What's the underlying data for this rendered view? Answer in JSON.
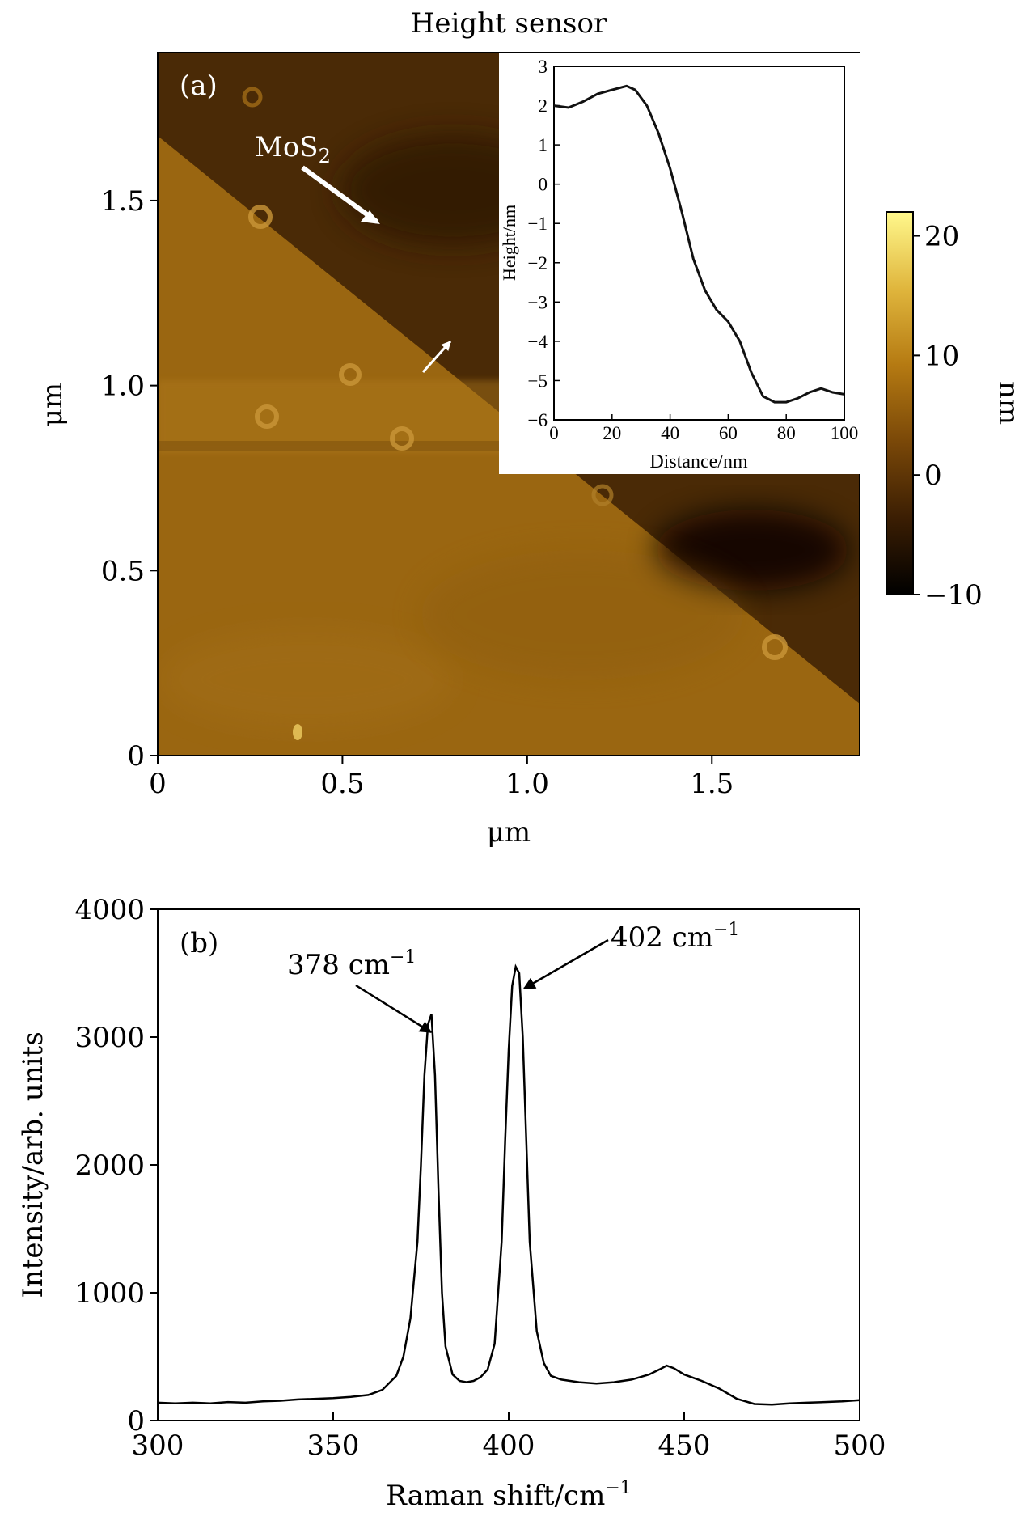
{
  "chart_data": [
    {
      "panel": "(a)",
      "type": "heatmap",
      "title": "Height sensor",
      "xlabel": "μm",
      "ylabel": "μm",
      "xlim": [
        0,
        1.9
      ],
      "ylim": [
        0,
        1.9
      ],
      "x_ticks": [
        "0",
        "0.5",
        "1.0",
        "1.5"
      ],
      "y_ticks": [
        "0",
        "0.5",
        "1.0",
        "1.5"
      ],
      "annotation": {
        "base": "MoS",
        "sub": "2"
      },
      "colorbar": {
        "label": "nm",
        "range": [
          -10,
          22
        ],
        "ticks": [
          "20",
          "10",
          "0",
          "−10"
        ],
        "colors": [
          "#000000",
          "#3b1e03",
          "#7a4808",
          "#b57a12",
          "#e0b63d",
          "#fff88c"
        ]
      },
      "inset": {
        "type": "line",
        "xlabel": "Distance/nm",
        "ylabel": "Height/nm",
        "xlim": [
          0,
          100
        ],
        "ylim": [
          -6,
          3
        ],
        "x_ticks": [
          "0",
          "20",
          "40",
          "60",
          "80",
          "100"
        ],
        "y_ticks": [
          "3",
          "2",
          "1",
          "0",
          "−1",
          "−2",
          "−3",
          "−4",
          "−5",
          "−6"
        ],
        "x": [
          0,
          5,
          10,
          15,
          20,
          25,
          28,
          32,
          36,
          40,
          44,
          48,
          52,
          56,
          60,
          64,
          68,
          72,
          76,
          80,
          84,
          88,
          92,
          96,
          100
        ],
        "y": [
          2.0,
          1.95,
          2.1,
          2.3,
          2.4,
          2.5,
          2.4,
          2.0,
          1.3,
          0.4,
          -0.7,
          -1.9,
          -2.7,
          -3.2,
          -3.5,
          -4.0,
          -4.8,
          -5.4,
          -5.55,
          -5.55,
          -5.45,
          -5.3,
          -5.2,
          -5.3,
          -5.35
        ]
      }
    },
    {
      "panel": "(b)",
      "type": "line",
      "xlabel": "Raman shift/cm",
      "xlabel_sup": "−1",
      "ylabel": "Intensity/arb. units",
      "xlim": [
        300,
        500
      ],
      "ylim": [
        0,
        4000
      ],
      "x_ticks": [
        "300",
        "350",
        "400",
        "450",
        "500"
      ],
      "y_ticks": [
        "0",
        "1000",
        "2000",
        "3000",
        "4000"
      ],
      "annotations": [
        {
          "text": "378 cm",
          "sup": "−1",
          "x": 378,
          "y": 3180
        },
        {
          "text": "402 cm",
          "sup": "−1",
          "x": 402.5,
          "y": 3550
        }
      ],
      "x": [
        300,
        305,
        310,
        315,
        320,
        325,
        330,
        335,
        340,
        345,
        350,
        355,
        360,
        364,
        368,
        370,
        372,
        374,
        375,
        376,
        377,
        378,
        379,
        380,
        381,
        382,
        384,
        386,
        388,
        390,
        392,
        394,
        396,
        398,
        399,
        400,
        401,
        402,
        403,
        404,
        405,
        406,
        408,
        410,
        412,
        415,
        420,
        425,
        430,
        435,
        440,
        443,
        445,
        447,
        450,
        455,
        460,
        465,
        470,
        475,
        480,
        485,
        490,
        495,
        500
      ],
      "y": [
        140,
        135,
        140,
        135,
        145,
        140,
        150,
        155,
        165,
        170,
        175,
        185,
        200,
        240,
        350,
        500,
        800,
        1400,
        2000,
        2700,
        3100,
        3180,
        2700,
        1800,
        1000,
        580,
        360,
        310,
        300,
        310,
        340,
        400,
        600,
        1400,
        2200,
        2900,
        3400,
        3550,
        3500,
        3000,
        2200,
        1400,
        700,
        450,
        350,
        320,
        300,
        290,
        300,
        320,
        360,
        400,
        430,
        410,
        360,
        310,
        250,
        170,
        130,
        125,
        135,
        140,
        145,
        150,
        160
      ]
    }
  ]
}
